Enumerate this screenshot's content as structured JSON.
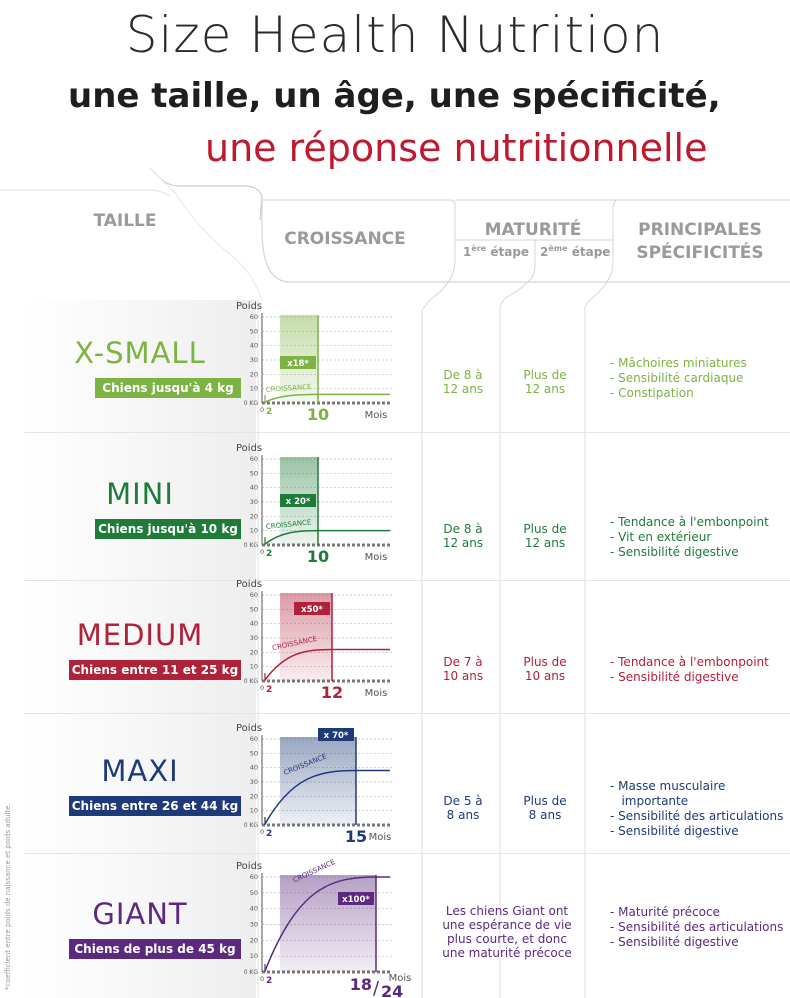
{
  "header": {
    "title": "Size Health Nutrition",
    "subtitle1": "une taille, un âge, une spécificité,",
    "subtitle2": "une réponse nutritionnelle"
  },
  "columns": {
    "taille": "TAILLE",
    "croissance": "CROISSANCE",
    "maturite": "MATURITÉ",
    "etape1_num": "1",
    "etape1_sup": "ère",
    "etape1_word": "étape",
    "etape2_num": "2",
    "etape2_sup": "ème",
    "etape2_word": "étape",
    "specificites_line1": "PRINCIPALES",
    "specificites_line2": "SPÉCIFICITÉS"
  },
  "chart_common": {
    "ylabel": "Poids",
    "xunit": "Mois",
    "curve_label": "CROISSANCE",
    "y_ticks": [
      "60",
      "50",
      "40",
      "30",
      "20",
      "10",
      "0 KG"
    ],
    "start_month": "2",
    "zero": "0"
  },
  "rows": [
    {
      "name": "X-SMALL",
      "badge": "Chiens jusqu'à 4 kg",
      "color": "#7cb342",
      "multiplier": "x18*",
      "maturity_month": "10",
      "stage1": [
        "De 8 à",
        "12 ans"
      ],
      "stage2": [
        "Plus de",
        "12 ans"
      ],
      "specs": [
        "- Mâchoires miniatures",
        "- Sensibilité cardiaque",
        "- Constipation"
      ]
    },
    {
      "name": "MINI",
      "badge": "Chiens jusqu'à 10 kg",
      "color": "#1e7b3a",
      "multiplier": "x 20*",
      "maturity_month": "10",
      "stage1": [
        "De 8 à",
        "12 ans"
      ],
      "stage2": [
        "Plus de",
        "12 ans"
      ],
      "specs": [
        "- Tendance à l'embonpoint",
        "- Vit en extérieur",
        "- Sensibilité digestive"
      ]
    },
    {
      "name": "MEDIUM",
      "badge": "Chiens entre 11 et 25 kg",
      "color": "#b0213a",
      "multiplier": "x50*",
      "maturity_month": "12",
      "stage1": [
        "De 7 à",
        "10 ans"
      ],
      "stage2": [
        "Plus de",
        "10 ans"
      ],
      "specs": [
        "- Tendance à l'embonpoint",
        "- Sensibilité digestive"
      ]
    },
    {
      "name": "MAXI",
      "badge": "Chiens entre 26 et 44 kg",
      "color": "#1f3a78",
      "multiplier": "x 70*",
      "maturity_month": "15",
      "stage1": [
        "De 5 à",
        "8 ans"
      ],
      "stage2": [
        "Plus de",
        "8 ans"
      ],
      "specs": [
        "- Masse musculaire",
        "   importante",
        "- Sensibilité des articulations",
        "- Sensibilité digestive"
      ]
    },
    {
      "name": "GIANT",
      "badge": "Chiens de plus de 45 kg",
      "color": "#5b2a7e",
      "multiplier": "x100*",
      "maturity_month_a": "18",
      "maturity_month_b": "24",
      "giant_text": [
        "Les chiens Giant ont",
        "une espérance de vie",
        "plus courte, et donc",
        "une maturité précoce"
      ],
      "specs": [
        "- Maturité précoce",
        "- Sensibilité des articulations",
        "- Sensibilité digestive"
      ]
    }
  ],
  "footnote": "*coefficient entre poids de naissance et poids adulte."
}
